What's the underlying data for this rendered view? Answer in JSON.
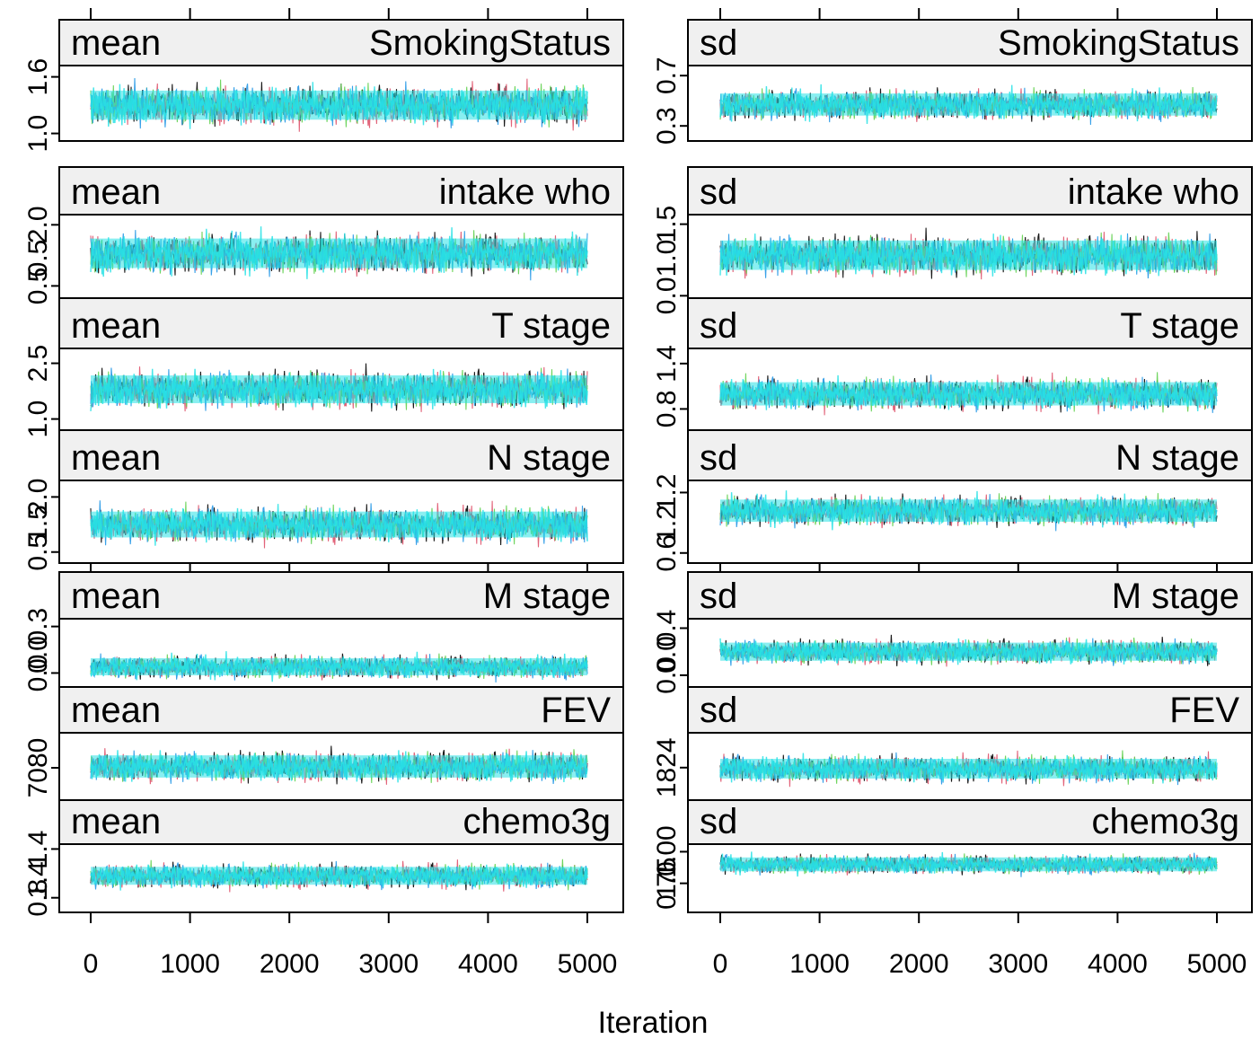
{
  "figure": {
    "xlabel": "Iteration",
    "x_ticks": [
      0,
      1000,
      2000,
      3000,
      4000,
      5000
    ],
    "chain_colors": [
      "#000000",
      "#DF536B",
      "#61D04F",
      "#2297E6",
      "#28E2E5"
    ],
    "strip_fill": "#f0f0f0"
  },
  "chart_data": [
    {
      "type": "line",
      "column": 0,
      "row": 0,
      "stat": "mean",
      "variable": "SmokingStatus",
      "x": [
        0,
        5000
      ],
      "y_ticks": [
        1.0,
        1.6
      ],
      "tick_labels": [
        "1.0",
        "1.6"
      ],
      "ylim": [
        0.92,
        1.72
      ],
      "center": 1.3,
      "spread": 0.14,
      "n_chains": 5
    },
    {
      "type": "line",
      "column": 0,
      "row": 1,
      "stat": "mean",
      "variable": "intake_who",
      "x": [
        0,
        5000
      ],
      "y_ticks": [
        0.5,
        2.0
      ],
      "tick_labels": [
        "0.5",
        "2.0"
      ],
      "extra_tick_labels": [
        "0.5"
      ],
      "ylim": [
        0.2,
        2.25
      ],
      "center": 1.3,
      "spread": 0.33,
      "n_chains": 5
    },
    {
      "type": "line",
      "column": 0,
      "row": 2,
      "stat": "mean",
      "variable": "T_stage",
      "x": [
        0,
        5000
      ],
      "y_ticks": [
        1.0,
        2.5
      ],
      "tick_labels": [
        "1.0",
        "2.5"
      ],
      "ylim": [
        0.7,
        2.9
      ],
      "center": 1.8,
      "spread": 0.34,
      "n_chains": 5
    },
    {
      "type": "line",
      "column": 0,
      "row": 3,
      "stat": "mean",
      "variable": "N_stage",
      "x": [
        0,
        5000
      ],
      "y_ticks": [
        0.5,
        2.0
      ],
      "tick_labels": [
        "0.5",
        "2.0"
      ],
      "extra_tick_labels": [
        "1.5"
      ],
      "ylim": [
        0.2,
        2.45
      ],
      "center": 1.25,
      "spread": 0.32,
      "n_chains": 5
    },
    {
      "type": "line",
      "column": 0,
      "row": 4,
      "stat": "mean",
      "variable": "M_stage",
      "x": [
        0,
        5000
      ],
      "y_ticks": [
        0.0,
        0.3
      ],
      "tick_labels": [
        "0.0",
        "0.3"
      ],
      "extra_tick_labels": [
        "0.0"
      ],
      "ylim": [
        -0.09,
        0.35
      ],
      "center": 0.04,
      "spread": 0.05,
      "n_chains": 5
    },
    {
      "type": "line",
      "column": 0,
      "row": 5,
      "stat": "mean",
      "variable": "FEV",
      "x": [
        0,
        5000
      ],
      "y_ticks": [
        7080
      ],
      "tick_labels": [
        "7080"
      ],
      "ylim": [
        6600,
        7600
      ],
      "center": 7100,
      "spread": 150,
      "n_chains": 5
    },
    {
      "type": "line",
      "column": 0,
      "row": 6,
      "stat": "mean",
      "variable": "chemo3g",
      "x": [
        0,
        5000
      ],
      "y_ticks": [
        0.8,
        1.4
      ],
      "tick_labels": [
        "0.8",
        "1.4"
      ],
      "extra_tick_labels": [
        "1.4"
      ],
      "ylim": [
        0.62,
        1.46
      ],
      "center": 1.07,
      "spread": 0.1,
      "n_chains": 5
    },
    {
      "type": "line",
      "column": 1,
      "row": 0,
      "stat": "sd",
      "variable": "SmokingStatus",
      "x": [
        0,
        5000
      ],
      "y_ticks": [
        0.3,
        0.7
      ],
      "tick_labels": [
        "0.3",
        "0.7"
      ],
      "ylim": [
        0.18,
        0.78
      ],
      "center": 0.47,
      "spread": 0.08,
      "n_chains": 5
    },
    {
      "type": "line",
      "column": 1,
      "row": 1,
      "stat": "sd",
      "variable": "intake_who",
      "x": [
        0,
        5000
      ],
      "y_ticks": [
        0.0,
        1.5
      ],
      "tick_labels": [
        "0.0",
        "1.5"
      ],
      "extra_tick_labels": [
        "1.0"
      ],
      "ylim": [
        -0.05,
        1.7
      ],
      "center": 0.85,
      "spread": 0.28,
      "n_chains": 5
    },
    {
      "type": "line",
      "column": 1,
      "row": 2,
      "stat": "sd",
      "variable": "T_stage",
      "x": [
        0,
        5000
      ],
      "y_ticks": [
        0.8,
        1.4
      ],
      "tick_labels": [
        "0.8",
        "1.4"
      ],
      "ylim": [
        0.52,
        1.6
      ],
      "center": 1.0,
      "spread": 0.14,
      "n_chains": 5
    },
    {
      "type": "line",
      "column": 1,
      "row": 3,
      "stat": "sd",
      "variable": "N_stage",
      "x": [
        0,
        5000
      ],
      "y_ticks": [
        0.6,
        1.2
      ],
      "tick_labels": [
        "0.6",
        "1.2"
      ],
      "extra_tick_labels": [
        "1.2"
      ],
      "ylim": [
        0.5,
        1.32
      ],
      "center": 1.02,
      "spread": 0.1,
      "n_chains": 5
    },
    {
      "type": "line",
      "column": 1,
      "row": 4,
      "stat": "sd",
      "variable": "M_stage",
      "x": [
        0,
        5000
      ],
      "y_ticks": [
        0.0,
        0.4
      ],
      "tick_labels": [
        "0.0",
        "0.4"
      ],
      "extra_tick_labels": [
        "0.0"
      ],
      "ylim": [
        -0.1,
        0.48
      ],
      "center": 0.2,
      "spread": 0.07,
      "n_chains": 5
    },
    {
      "type": "line",
      "column": 1,
      "row": 5,
      "stat": "sd",
      "variable": "FEV",
      "x": [
        0,
        5000
      ],
      "y_ticks": [
        1824
      ],
      "tick_labels": [
        "1824"
      ],
      "ylim": [
        1100,
        2600
      ],
      "center": 1800,
      "spread": 200,
      "n_chains": 5
    },
    {
      "type": "line",
      "column": 1,
      "row": 6,
      "stat": "sd",
      "variable": "chemo3g",
      "x": [
        0,
        5000
      ],
      "y_ticks": [
        0.75,
        1.0
      ],
      "tick_labels": [
        "0.75",
        "1.00"
      ],
      "extra_tick_labels": [
        "1.0"
      ],
      "ylim": [
        0.52,
        1.06
      ],
      "center": 0.9,
      "spread": 0.05,
      "n_chains": 5
    }
  ]
}
